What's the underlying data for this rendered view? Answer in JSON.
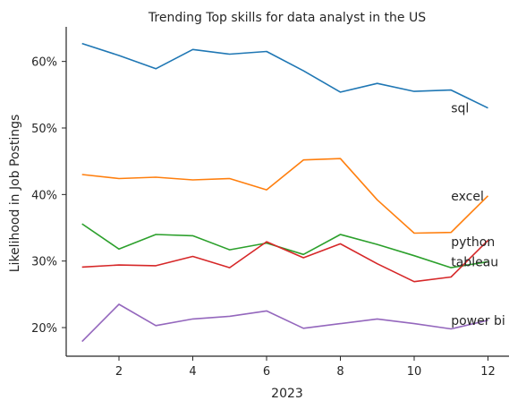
{
  "chart_data": {
    "type": "line",
    "title": "Trending Top skills for data analyst in the US",
    "xlabel": "2023",
    "ylabel": "Likelihood in Job Postings",
    "x": [
      1,
      2,
      3,
      4,
      5,
      6,
      7,
      8,
      9,
      10,
      11,
      12
    ],
    "xticks": [
      2,
      4,
      6,
      8,
      10,
      12
    ],
    "xlim": [
      0.57,
      12.57
    ],
    "yticks": [
      20,
      30,
      40,
      50,
      60
    ],
    "ytick_format": "percent",
    "ylim": [
      15.7,
      65.2
    ],
    "grid": false,
    "legend": "none",
    "series": [
      {
        "name": "sql",
        "color": "#1f77b4",
        "values": [
          62.7,
          60.9,
          58.9,
          61.8,
          61.1,
          61.5,
          58.6,
          55.4,
          56.7,
          55.5,
          55.7,
          53.0
        ]
      },
      {
        "name": "excel",
        "color": "#ff7f0e",
        "values": [
          43.0,
          42.4,
          42.6,
          42.2,
          42.4,
          40.7,
          45.2,
          45.4,
          39.2,
          34.2,
          34.3,
          39.8
        ]
      },
      {
        "name": "python",
        "color": "#2ca02c",
        "values": [
          35.6,
          31.8,
          34.0,
          33.8,
          31.7,
          32.7,
          31.0,
          34.0,
          32.5,
          30.8,
          29.0,
          29.9
        ]
      },
      {
        "name": "tableau",
        "color": "#d62728",
        "values": [
          29.1,
          29.4,
          29.3,
          30.7,
          29.0,
          32.9,
          30.5,
          32.6,
          29.6,
          26.9,
          27.6,
          33.1
        ]
      },
      {
        "name": "power bi",
        "color": "#9467bd",
        "values": [
          17.9,
          23.5,
          20.3,
          21.3,
          21.7,
          22.5,
          19.9,
          20.6,
          21.3,
          20.6,
          19.8,
          21.1
        ]
      }
    ],
    "annotations": [
      {
        "text": "sql",
        "x": 11.0,
        "y": 53.0
      },
      {
        "text": "excel",
        "x": 11.0,
        "y": 39.8
      },
      {
        "text": "python",
        "x": 11.0,
        "y": 32.9
      },
      {
        "text": "tableau",
        "x": 11.0,
        "y": 29.9
      },
      {
        "text": "power bi",
        "x": 11.0,
        "y": 21.1
      }
    ]
  }
}
